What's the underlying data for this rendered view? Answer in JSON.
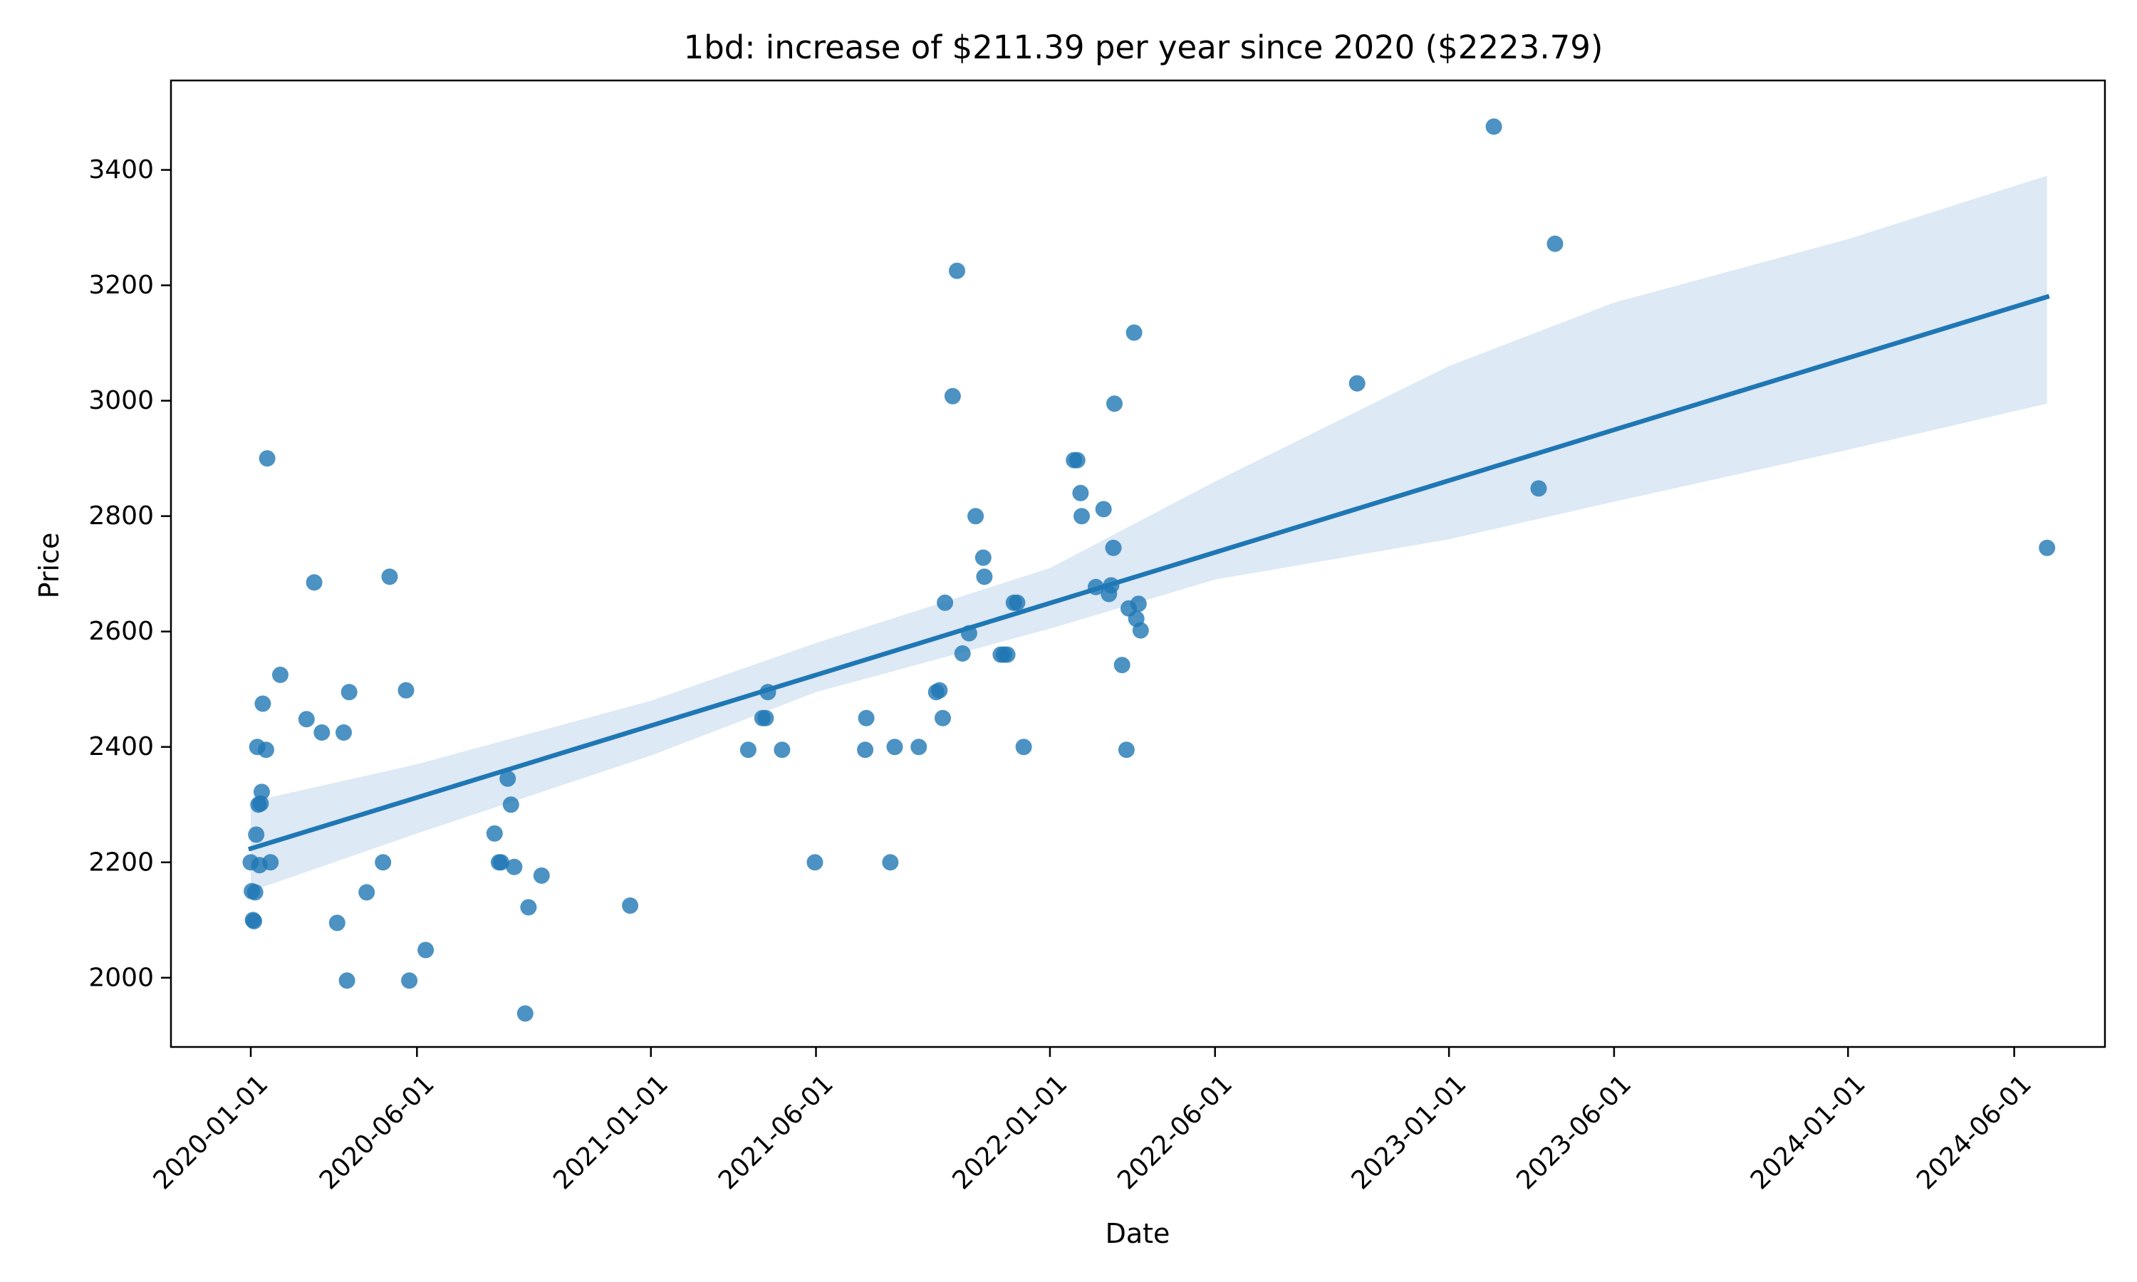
{
  "chart_data": {
    "type": "scatter",
    "title": "1bd: increase of $211.39 per year since 2020 ($2223.79)",
    "xlabel": "Date",
    "ylabel": "Price",
    "xlim": [
      "2019-10-20",
      "2024-08-23"
    ],
    "ylim": [
      1880,
      3555
    ],
    "x_ticks": [
      "2020-01-01",
      "2020-06-01",
      "2021-01-01",
      "2021-06-01",
      "2022-01-01",
      "2022-06-01",
      "2023-01-01",
      "2023-06-01",
      "2024-01-01",
      "2024-06-01"
    ],
    "y_ticks": [
      2000,
      2200,
      2400,
      2600,
      2800,
      3000,
      3200,
      3400
    ],
    "point_color": "#1f77b4",
    "band_color": "#c6dbef",
    "grid": false,
    "regression": {
      "start": {
        "x": "2020-01-01",
        "y": 2223.79
      },
      "end": {
        "x": "2024-07-01",
        "y": 3180
      },
      "ci_upper": [
        {
          "x": "2020-01-01",
          "y": 2305
        },
        {
          "x": "2020-06-01",
          "y": 2370
        },
        {
          "x": "2021-01-01",
          "y": 2480
        },
        {
          "x": "2021-06-01",
          "y": 2580
        },
        {
          "x": "2022-01-01",
          "y": 2710
        },
        {
          "x": "2022-06-01",
          "y": 2860
        },
        {
          "x": "2023-01-01",
          "y": 3060
        },
        {
          "x": "2023-06-01",
          "y": 3170
        },
        {
          "x": "2024-01-01",
          "y": 3280
        },
        {
          "x": "2024-07-01",
          "y": 3390
        }
      ],
      "ci_lower": [
        {
          "x": "2020-01-01",
          "y": 2150
        },
        {
          "x": "2020-06-01",
          "y": 2250
        },
        {
          "x": "2021-01-01",
          "y": 2385
        },
        {
          "x": "2021-06-01",
          "y": 2495
        },
        {
          "x": "2022-01-01",
          "y": 2605
        },
        {
          "x": "2022-06-01",
          "y": 2690
        },
        {
          "x": "2023-01-01",
          "y": 2760
        },
        {
          "x": "2023-06-01",
          "y": 2825
        },
        {
          "x": "2024-01-01",
          "y": 2915
        },
        {
          "x": "2024-07-01",
          "y": 2995
        }
      ]
    },
    "points": [
      {
        "x": "2020-01-01",
        "y": 2200
      },
      {
        "x": "2020-01-02",
        "y": 2150
      },
      {
        "x": "2020-01-03",
        "y": 2100
      },
      {
        "x": "2020-01-04",
        "y": 2098
      },
      {
        "x": "2020-01-05",
        "y": 2148
      },
      {
        "x": "2020-01-06",
        "y": 2248
      },
      {
        "x": "2020-01-07",
        "y": 2400
      },
      {
        "x": "2020-01-08",
        "y": 2300
      },
      {
        "x": "2020-01-09",
        "y": 2195
      },
      {
        "x": "2020-01-10",
        "y": 2302
      },
      {
        "x": "2020-01-11",
        "y": 2322
      },
      {
        "x": "2020-01-12",
        "y": 2475
      },
      {
        "x": "2020-01-15",
        "y": 2395
      },
      {
        "x": "2020-01-16",
        "y": 2900
      },
      {
        "x": "2020-01-19",
        "y": 2200
      },
      {
        "x": "2020-01-28",
        "y": 2525
      },
      {
        "x": "2020-02-21",
        "y": 2448
      },
      {
        "x": "2020-02-28",
        "y": 2685
      },
      {
        "x": "2020-03-06",
        "y": 2425
      },
      {
        "x": "2020-03-20",
        "y": 2095
      },
      {
        "x": "2020-03-26",
        "y": 2425
      },
      {
        "x": "2020-03-29",
        "y": 1995
      },
      {
        "x": "2020-03-31",
        "y": 2495
      },
      {
        "x": "2020-04-16",
        "y": 2148
      },
      {
        "x": "2020-05-01",
        "y": 2200
      },
      {
        "x": "2020-05-07",
        "y": 2695
      },
      {
        "x": "2020-05-22",
        "y": 2498
      },
      {
        "x": "2020-05-25",
        "y": 1995
      },
      {
        "x": "2020-06-09",
        "y": 2048
      },
      {
        "x": "2020-08-11",
        "y": 2250
      },
      {
        "x": "2020-08-15",
        "y": 2200
      },
      {
        "x": "2020-08-17",
        "y": 2200
      },
      {
        "x": "2020-08-23",
        "y": 2345
      },
      {
        "x": "2020-08-26",
        "y": 2300
      },
      {
        "x": "2020-08-29",
        "y": 2192
      },
      {
        "x": "2020-09-08",
        "y": 1938
      },
      {
        "x": "2020-09-11",
        "y": 2122
      },
      {
        "x": "2020-09-23",
        "y": 2177
      },
      {
        "x": "2020-12-13",
        "y": 2125
      },
      {
        "x": "2021-03-31",
        "y": 2395
      },
      {
        "x": "2021-04-13",
        "y": 2450
      },
      {
        "x": "2021-04-16",
        "y": 2450
      },
      {
        "x": "2021-04-18",
        "y": 2495
      },
      {
        "x": "2021-05-01",
        "y": 2395
      },
      {
        "x": "2021-05-31",
        "y": 2200
      },
      {
        "x": "2021-07-16",
        "y": 2395
      },
      {
        "x": "2021-07-17",
        "y": 2450
      },
      {
        "x": "2021-08-08",
        "y": 2200
      },
      {
        "x": "2021-08-12",
        "y": 2400
      },
      {
        "x": "2021-09-03",
        "y": 2400
      },
      {
        "x": "2021-09-19",
        "y": 2495
      },
      {
        "x": "2021-09-22",
        "y": 2498
      },
      {
        "x": "2021-09-25",
        "y": 2450
      },
      {
        "x": "2021-09-27",
        "y": 2650
      },
      {
        "x": "2021-10-04",
        "y": 3008
      },
      {
        "x": "2021-10-08",
        "y": 3225
      },
      {
        "x": "2021-10-13",
        "y": 2562
      },
      {
        "x": "2021-10-19",
        "y": 2597
      },
      {
        "x": "2021-10-25",
        "y": 2800
      },
      {
        "x": "2021-11-01",
        "y": 2728
      },
      {
        "x": "2021-11-02",
        "y": 2695
      },
      {
        "x": "2021-11-17",
        "y": 2560
      },
      {
        "x": "2021-11-20",
        "y": 2560
      },
      {
        "x": "2021-11-23",
        "y": 2560
      },
      {
        "x": "2021-11-29",
        "y": 2650
      },
      {
        "x": "2021-12-02",
        "y": 2650
      },
      {
        "x": "2021-12-08",
        "y": 2400
      },
      {
        "x": "2022-01-23",
        "y": 2897
      },
      {
        "x": "2022-01-26",
        "y": 2897
      },
      {
        "x": "2022-01-29",
        "y": 2840
      },
      {
        "x": "2022-01-30",
        "y": 2800
      },
      {
        "x": "2022-02-12",
        "y": 2677
      },
      {
        "x": "2022-02-19",
        "y": 2812
      },
      {
        "x": "2022-02-24",
        "y": 2665
      },
      {
        "x": "2022-02-26",
        "y": 2680
      },
      {
        "x": "2022-02-28",
        "y": 2745
      },
      {
        "x": "2022-03-01",
        "y": 2995
      },
      {
        "x": "2022-03-08",
        "y": 2542
      },
      {
        "x": "2022-03-12",
        "y": 2395
      },
      {
        "x": "2022-03-14",
        "y": 2640
      },
      {
        "x": "2022-03-19",
        "y": 3118
      },
      {
        "x": "2022-03-21",
        "y": 2622
      },
      {
        "x": "2022-03-23",
        "y": 2648
      },
      {
        "x": "2022-03-25",
        "y": 2602
      },
      {
        "x": "2022-10-09",
        "y": 3030
      },
      {
        "x": "2023-02-11",
        "y": 3475
      },
      {
        "x": "2023-03-24",
        "y": 2848
      },
      {
        "x": "2023-04-08",
        "y": 3272
      },
      {
        "x": "2024-07-01",
        "y": 2745
      }
    ]
  }
}
